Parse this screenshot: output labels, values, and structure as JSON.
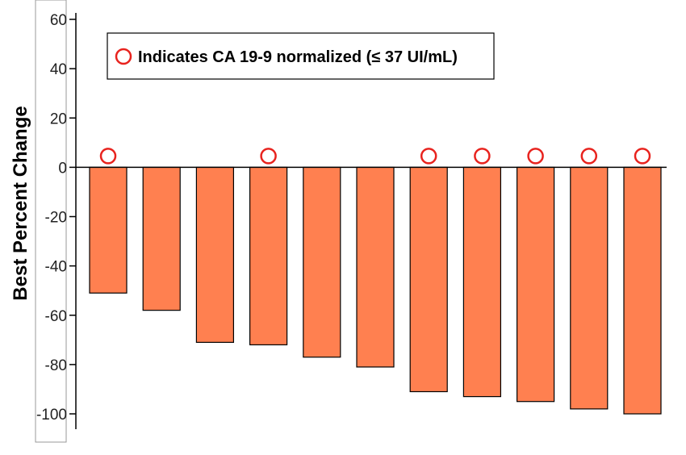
{
  "chart_data": {
    "type": "bar",
    "title": "",
    "xlabel": "",
    "ylabel": "Best Percent Change",
    "ylim": [
      -105,
      62
    ],
    "yticks": [
      60,
      40,
      20,
      0,
      -20,
      -40,
      -60,
      -80,
      -100
    ],
    "ytick_labels": [
      "60",
      "40",
      "20",
      "0",
      "-20",
      "-40",
      "-60",
      "-80",
      "-100"
    ],
    "values": [
      -51,
      -58,
      -71,
      -72,
      -77,
      -81,
      -91,
      -93,
      -95,
      -98,
      -100
    ],
    "normalized": [
      true,
      false,
      false,
      true,
      false,
      false,
      true,
      true,
      true,
      true,
      true
    ],
    "legend": {
      "text": "Indicates CA 19-9 normalized (≤ 37 UI/mL)",
      "position": "top-left"
    },
    "colors": {
      "bar_fill": "#FF8050",
      "bar_stroke": "#000000",
      "marker_stroke": "#E8231E"
    },
    "grid": false
  }
}
